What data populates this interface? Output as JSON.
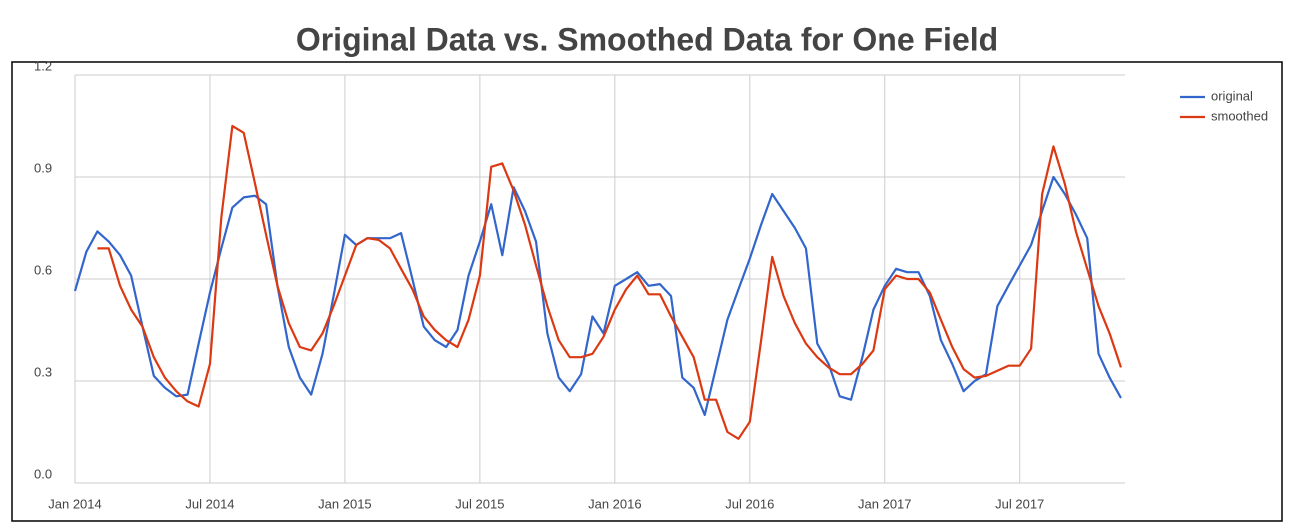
{
  "chart_data": {
    "type": "line",
    "title": "Original Data vs. Smoothed Data for One Field",
    "x": [
      2014,
      2014.042,
      2014.083,
      2014.125,
      2014.167,
      2014.208,
      2014.25,
      2014.292,
      2014.333,
      2014.375,
      2014.417,
      2014.458,
      2014.5,
      2014.542,
      2014.583,
      2014.625,
      2014.667,
      2014.708,
      2014.75,
      2014.792,
      2014.833,
      2014.875,
      2014.917,
      2014.958,
      2015,
      2015.042,
      2015.083,
      2015.125,
      2015.167,
      2015.208,
      2015.25,
      2015.292,
      2015.333,
      2015.375,
      2015.417,
      2015.458,
      2015.5,
      2015.542,
      2015.583,
      2015.625,
      2015.667,
      2015.708,
      2015.75,
      2015.792,
      2015.833,
      2015.875,
      2015.917,
      2015.958,
      2016,
      2016.042,
      2016.083,
      2016.125,
      2016.167,
      2016.208,
      2016.25,
      2016.292,
      2016.333,
      2016.375,
      2016.417,
      2016.458,
      2016.5,
      2016.542,
      2016.583,
      2016.625,
      2016.667,
      2016.708,
      2016.75,
      2016.792,
      2016.833,
      2016.875,
      2016.917,
      2016.958,
      2017,
      2017.042,
      2017.083,
      2017.125,
      2017.167,
      2017.208,
      2017.25,
      2017.292,
      2017.333,
      2017.375,
      2017.417,
      2017.458,
      2017.5,
      2017.542,
      2017.583,
      2017.625,
      2017.667,
      2017.708,
      2017.75,
      2017.792,
      2017.833,
      2017.875
    ],
    "series": [
      {
        "name": "original",
        "color": "#3366cc",
        "values": [
          0.565,
          0.68,
          0.74,
          0.71,
          0.67,
          0.61,
          0.46,
          0.315,
          0.28,
          0.255,
          0.26,
          0.41,
          0.56,
          0.69,
          0.81,
          0.84,
          0.845,
          0.82,
          0.58,
          0.4,
          0.31,
          0.26,
          0.38,
          0.55,
          0.73,
          0.7,
          0.72,
          0.72,
          0.72,
          0.735,
          0.6,
          0.46,
          0.42,
          0.4,
          0.45,
          0.61,
          0.71,
          0.82,
          0.67,
          0.87,
          0.8,
          0.71,
          0.44,
          0.31,
          0.27,
          0.32,
          0.49,
          0.44,
          0.58,
          0.6,
          0.62,
          0.58,
          0.585,
          0.55,
          0.31,
          0.28,
          0.2,
          0.34,
          0.48,
          0.57,
          0.66,
          0.76,
          0.85,
          0.8,
          0.75,
          0.69,
          0.41,
          0.35,
          0.255,
          0.245,
          0.37,
          0.51,
          0.58,
          0.63,
          0.62,
          0.62,
          0.55,
          0.42,
          0.35,
          0.27,
          0.3,
          0.32,
          0.52,
          0.58,
          0.64,
          0.7,
          0.8,
          0.9,
          0.85,
          0.79,
          0.72,
          0.38,
          0.31,
          0.25
        ]
      },
      {
        "name": "smoothed",
        "color": "#dc3912",
        "values": [
          null,
          null,
          0.69,
          0.69,
          0.58,
          0.51,
          0.46,
          0.37,
          0.31,
          0.27,
          0.24,
          0.225,
          0.35,
          0.78,
          1.05,
          1.03,
          0.88,
          0.73,
          0.58,
          0.47,
          0.4,
          0.39,
          0.44,
          0.52,
          0.61,
          0.7,
          0.72,
          0.715,
          0.69,
          0.63,
          0.57,
          0.49,
          0.45,
          0.42,
          0.4,
          0.48,
          0.61,
          0.93,
          0.94,
          0.86,
          0.76,
          0.64,
          0.52,
          0.42,
          0.37,
          0.37,
          0.38,
          0.43,
          0.51,
          0.57,
          0.61,
          0.555,
          0.555,
          0.49,
          0.43,
          0.37,
          0.245,
          0.245,
          0.15,
          0.13,
          0.18,
          0.42,
          0.665,
          0.55,
          0.47,
          0.41,
          0.37,
          0.34,
          0.32,
          0.32,
          0.35,
          0.39,
          0.57,
          0.61,
          0.6,
          0.6,
          0.56,
          0.48,
          0.4,
          0.335,
          0.31,
          0.315,
          0.33,
          0.345,
          0.345,
          0.395,
          0.85,
          0.99,
          0.88,
          0.74,
          0.63,
          0.52,
          0.44,
          0.34
        ]
      }
    ],
    "xlim": [
      2014,
      2017.89
    ],
    "xticks": [
      {
        "value": 2014,
        "label": "Jan 2014"
      },
      {
        "value": 2014.5,
        "label": "Jul 2014"
      },
      {
        "value": 2015,
        "label": "Jan 2015"
      },
      {
        "value": 2015.5,
        "label": "Jul 2015"
      },
      {
        "value": 2016,
        "label": "Jan 2016"
      },
      {
        "value": 2016.5,
        "label": "Jul 2016"
      },
      {
        "value": 2017,
        "label": "Jan 2017"
      },
      {
        "value": 2017.5,
        "label": "Jul 2017"
      }
    ],
    "ylim": [
      0,
      1.2
    ],
    "yticks": [
      {
        "value": 0,
        "label": "0.0"
      },
      0.3,
      0.6,
      0.9,
      1.2
    ],
    "grid": true,
    "legend": "right"
  }
}
